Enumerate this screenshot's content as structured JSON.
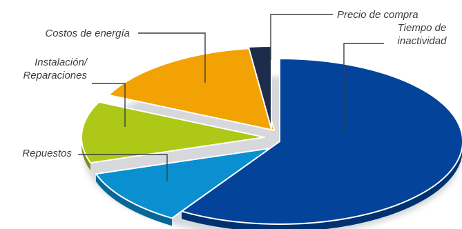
{
  "chart_data": {
    "type": "pie",
    "title": "",
    "exploded": true,
    "three_d": true,
    "slices": [
      {
        "label": "Tiempo de inactividad",
        "label_lines": [
          "Tiempo de",
          "inactividad"
        ],
        "value": 59,
        "color": "#03449a"
      },
      {
        "label": "Repuestos",
        "label_lines": [
          "Repuestos"
        ],
        "value": 11,
        "color": "#0a8fd0"
      },
      {
        "label": "Instalación/ Reparaciones",
        "label_lines": [
          "Instalación/",
          "Reparaciones"
        ],
        "value": 12,
        "color": "#adc817"
      },
      {
        "label": "Costos de energía",
        "label_lines": [
          "Costos de energía"
        ],
        "value": 16,
        "color": "#f3a204"
      },
      {
        "label": "Precio de compra",
        "label_lines": [
          "Precio de compra"
        ],
        "value": 2,
        "color": "#1d2c4b"
      }
    ]
  }
}
